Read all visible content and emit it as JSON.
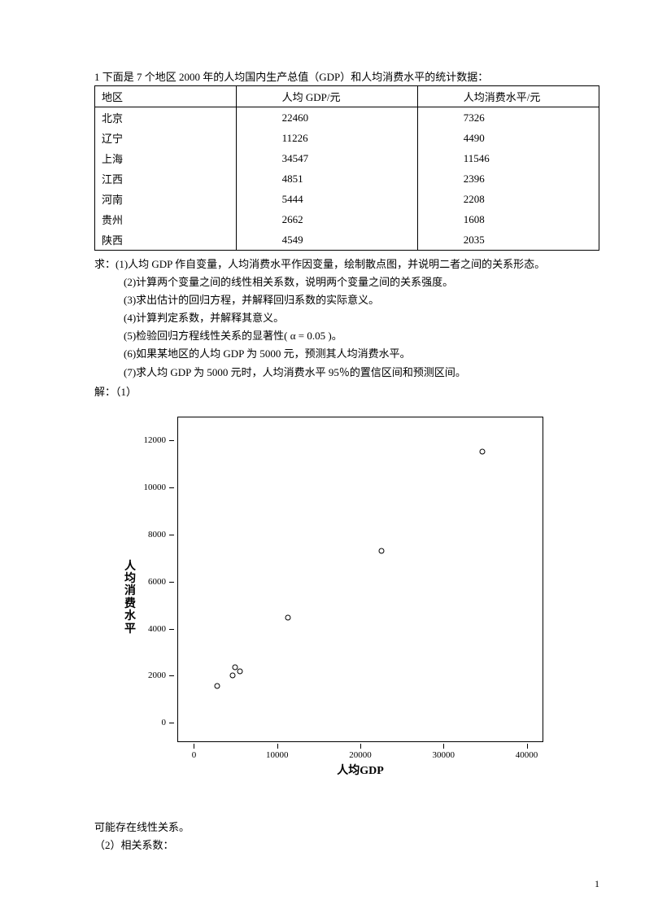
{
  "intro": "1  下面是 7 个地区 2000 年的人均国内生产总值（GDP）和人均消费水平的统计数据：",
  "table": {
    "headers": [
      "地区",
      "人均 GDP/元",
      "人均消费水平/元"
    ],
    "rows": [
      [
        "北京",
        "22460",
        "7326"
      ],
      [
        "辽宁",
        "11226",
        "4490"
      ],
      [
        "上海",
        "34547",
        "11546"
      ],
      [
        "江西",
        "4851",
        "2396"
      ],
      [
        "河南",
        "5444",
        "2208"
      ],
      [
        "贵州",
        "2662",
        "1608"
      ],
      [
        "陕西",
        "4549",
        "2035"
      ]
    ]
  },
  "questions": [
    "求：(1)人均 GDP 作自变量，人均消费水平作因变量，绘制散点图，并说明二者之间的关系形态。",
    "(2)计算两个变量之间的线性相关系数，说明两个变量之间的关系强度。",
    "(3)求出估计的回归方程，并解释回归系数的实际意义。",
    "(4)计算判定系数，并解释其意义。",
    "(5)检验回归方程线性关系的显著性( α = 0.05 )。",
    "(6)如果某地区的人均 GDP 为 5000  元，预测其人均消费水平。",
    "(7)求人均 GDP 为 5000 元时，人均消费水平 95％的置信区间和预测区间。"
  ],
  "answer_head": "解：（1）",
  "chart": {
    "type": "scatter",
    "xlabel": "人均GDP",
    "ylabel": "人均消费水平",
    "xlim": [
      -2000,
      42000
    ],
    "ylim": [
      -800,
      13000
    ],
    "xticks": [
      0,
      10000,
      20000,
      30000,
      40000
    ],
    "yticks": [
      0,
      2000,
      4000,
      6000,
      8000,
      10000,
      12000
    ],
    "points_x": [
      22460,
      11226,
      34547,
      4851,
      5444,
      2662,
      4549
    ],
    "points_y": [
      7326,
      4490,
      11546,
      2396,
      2208,
      1608,
      2035
    ],
    "marker_color": "#000000",
    "background_color": "#ffffff",
    "border_color": "#000000",
    "label_fontsize": 14,
    "tick_fontsize": 11,
    "marker_size": 7
  },
  "after": [
    "可能存在线性关系。",
    "（2）相关系数："
  ],
  "page_number": "1"
}
